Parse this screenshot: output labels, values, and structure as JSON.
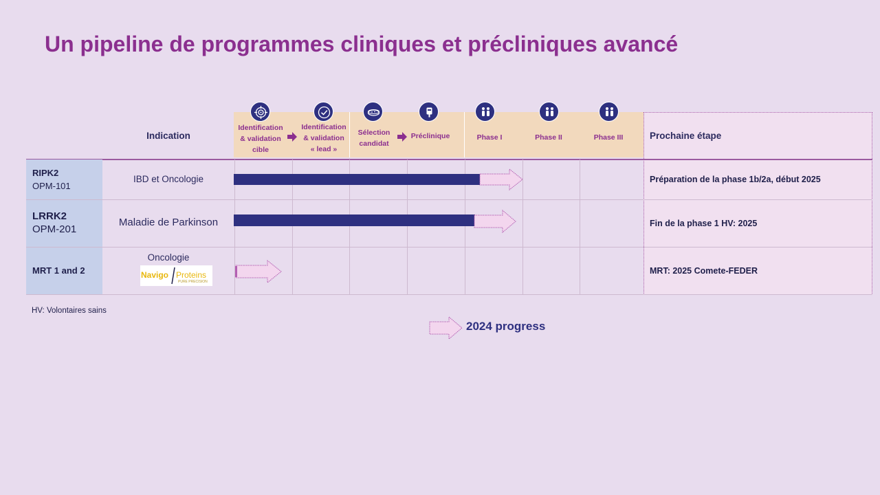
{
  "title": "Un pipeline de programmes cliniques et précliniques avancé",
  "headers": {
    "indication": "Indication",
    "next_step": "Prochaine étape"
  },
  "stages": [
    {
      "label_lines": [
        "Identification",
        "& validation",
        "cible"
      ],
      "icon": "target-icon"
    },
    {
      "label_lines": [
        "Identification",
        "& validation",
        "« lead »"
      ],
      "icon": "check-circle-icon"
    },
    {
      "label_lines": [
        "Sélection",
        "candidat"
      ],
      "icon": "petri-dish-icon"
    },
    {
      "label_lines": [
        "Préclinique"
      ],
      "icon": "iv-bag-icon"
    },
    {
      "label_lines": [
        "Phase I"
      ],
      "icon": "people-icon"
    },
    {
      "label_lines": [
        "Phase II"
      ],
      "icon": "people-icon"
    },
    {
      "label_lines": [
        "Phase III"
      ],
      "icon": "people-icon"
    }
  ],
  "rows": [
    {
      "code": "RIPK2",
      "sub": "OPM-101",
      "indication": "IBD et Oncologie",
      "next_step": "Préparation de la phase 1b/2a, début 2025",
      "progress_stage_fraction": 4.25,
      "progress_2024_to": 5.0
    },
    {
      "code": "LRRK2",
      "sub": "OPM-201",
      "indication": "Maladie de Parkinson",
      "next_step": "Fin de la phase 1 HV:  2025",
      "progress_stage_fraction": 4.15,
      "progress_2024_to": 4.9
    },
    {
      "code": "MRT 1 and 2",
      "sub": "",
      "indication": "Oncologie",
      "partner_logo": {
        "name": "Navigo",
        "suffix": "Proteins",
        "tagline": "PURE PRECISION"
      },
      "next_step": "MRT: 2025  Comete-FEDER",
      "progress_stage_fraction": 0.0,
      "progress_2024_to": 0.8
    }
  ],
  "footnote": "HV: Volontaires sains",
  "legend": {
    "label": "2024 progress"
  },
  "colors": {
    "background": "#e8dcee",
    "title": "#8b2f8f",
    "bar": "#2e3080",
    "stage_band": "#f2d9bd",
    "name_cell": "#c6d0ea",
    "next_col": "#f1e0f0"
  }
}
